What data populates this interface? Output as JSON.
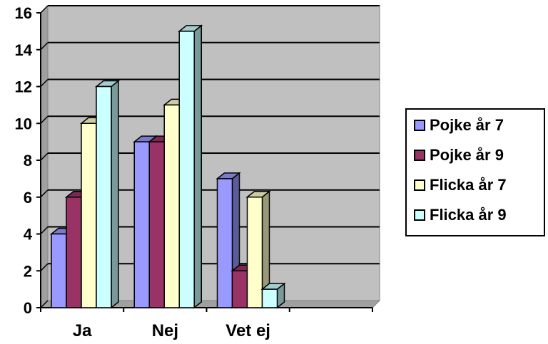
{
  "chart_data": {
    "type": "bar",
    "title": "",
    "xlabel": "",
    "ylabel": "",
    "categories": [
      "Ja",
      "Nej",
      "Vet ej"
    ],
    "ylim": [
      0,
      16
    ],
    "yticks": [
      "0",
      "2",
      "4",
      "6",
      "8",
      "10",
      "12",
      "14",
      "16"
    ],
    "grid": true,
    "legend_position": "right",
    "series": [
      {
        "name": "Pojke år 7",
        "values": [
          4,
          9,
          7
        ],
        "color": "#9999ff"
      },
      {
        "name": "Pojke år 9",
        "values": [
          6,
          9,
          2
        ],
        "color": "#993366"
      },
      {
        "name": "Flicka år 7",
        "values": [
          10,
          11,
          6
        ],
        "color": "#ffffcc"
      },
      {
        "name": "Flicka år 9",
        "values": [
          12,
          15,
          1
        ],
        "color": "#ccffff"
      }
    ],
    "plot_background": "#c0c0c0"
  }
}
